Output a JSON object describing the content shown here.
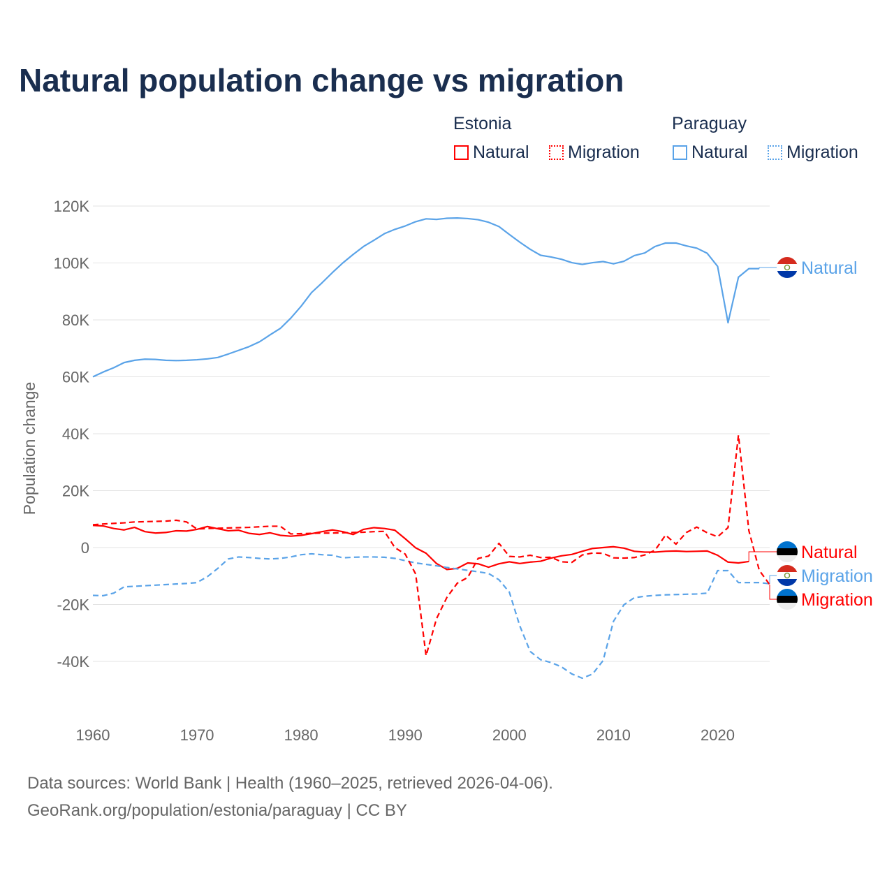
{
  "chart_data": {
    "type": "line",
    "title": "Natural population change vs migration",
    "ylabel": "Population change",
    "xlabel": "",
    "xlim": [
      1960,
      2025
    ],
    "ylim": [
      -50000,
      120000
    ],
    "x_ticks": [
      1960,
      1970,
      1980,
      1990,
      2000,
      2010,
      2020
    ],
    "x_tick_labels": [
      "1960",
      "1970",
      "1980",
      "1990",
      "2000",
      "2010",
      "2020"
    ],
    "y_ticks": [
      -40000,
      -20000,
      0,
      20000,
      40000,
      60000,
      80000,
      100000,
      120000
    ],
    "y_tick_labels": [
      "-40K",
      "-20K",
      "0",
      "20K",
      "40K",
      "60K",
      "80K",
      "100K",
      "120K"
    ],
    "grid": true,
    "legend": {
      "placement": "top-right",
      "groups": [
        {
          "name": "Estonia",
          "items": [
            "Natural",
            "Migration"
          ]
        },
        {
          "name": "Paraguay",
          "items": [
            "Natural",
            "Migration"
          ]
        }
      ]
    },
    "series": [
      {
        "name": "Paraguay Natural",
        "country": "Paraguay",
        "label": "Natural",
        "color": "#5aa3e8",
        "dash": false,
        "start": 1960,
        "values": [
          60000,
          61700,
          63200,
          65000,
          65800,
          66200,
          66100,
          65800,
          65700,
          65800,
          66000,
          66300,
          66800,
          68000,
          69300,
          70600,
          72300,
          74700,
          77000,
          80600,
          84800,
          89600,
          93000,
          96600,
          100000,
          103000,
          105800,
          108000,
          110300,
          111800,
          113000,
          114500,
          115500,
          115300,
          115700,
          115800,
          115600,
          115200,
          114300,
          112800,
          110000,
          107300,
          104800,
          102700,
          102100,
          101300,
          100100,
          99500,
          100100,
          100500,
          99700,
          100600,
          102600,
          103500,
          105800,
          107000,
          107000,
          106000,
          105200,
          103400,
          98800,
          79000,
          95000,
          98000,
          98000
        ]
      },
      {
        "name": "Estonia Natural",
        "country": "Estonia",
        "label": "Natural",
        "color": "#ff0000",
        "dash": false,
        "start": 1960,
        "values": [
          7800,
          7600,
          6700,
          6200,
          7100,
          5600,
          5100,
          5300,
          5900,
          5800,
          6400,
          7400,
          6600,
          5900,
          6100,
          5000,
          4600,
          5200,
          4300,
          4000,
          4300,
          4900,
          5600,
          6200,
          5600,
          4600,
          6400,
          7000,
          6700,
          6100,
          3100,
          -100,
          -2000,
          -5600,
          -7700,
          -7300,
          -5400,
          -5700,
          -6900,
          -5700,
          -5000,
          -5600,
          -5100,
          -4800,
          -3700,
          -2900,
          -2400,
          -1300,
          -300,
          0,
          300,
          -200,
          -1300,
          -1600,
          -1600,
          -1300,
          -1200,
          -1400,
          -1300,
          -1200,
          -2700,
          -5100,
          -5400,
          -4900
        ]
      },
      {
        "name": "Paraguay Migration",
        "country": "Paraguay",
        "label": "Migration",
        "color": "#5aa3e8",
        "dash": true,
        "start": 1960,
        "values": [
          -16800,
          -16900,
          -16000,
          -13800,
          -13600,
          -13400,
          -13200,
          -13000,
          -12800,
          -12600,
          -12300,
          -10200,
          -7300,
          -4000,
          -3300,
          -3500,
          -3800,
          -4000,
          -3800,
          -3300,
          -2500,
          -2200,
          -2500,
          -2700,
          -3600,
          -3400,
          -3300,
          -3300,
          -3400,
          -3800,
          -4600,
          -5400,
          -5900,
          -6400,
          -7000,
          -7500,
          -8000,
          -8500,
          -9100,
          -11300,
          -15700,
          -27500,
          -36500,
          -39400,
          -40400,
          -41900,
          -44400,
          -45900,
          -44400,
          -39700,
          -25900,
          -20100,
          -17600,
          -17100,
          -16800,
          -16600,
          -16500,
          -16400,
          -16300,
          -16000,
          -8100,
          -8100,
          -12300,
          -12300,
          -12300,
          -12700
        ]
      },
      {
        "name": "Estonia Migration",
        "country": "Estonia",
        "label": "Migration",
        "color": "#ff0000",
        "dash": true,
        "start": 1960,
        "values": [
          8000,
          8300,
          8500,
          8700,
          9000,
          9100,
          9200,
          9300,
          9600,
          9000,
          6500,
          6700,
          6800,
          6900,
          7000,
          7100,
          7300,
          7500,
          7500,
          4800,
          4900,
          5000,
          5100,
          5100,
          5200,
          5300,
          5400,
          5600,
          5700,
          0,
          -2300,
          -9300,
          -38000,
          -25000,
          -17500,
          -12500,
          -10500,
          -3800,
          -3000,
          1500,
          -3100,
          -3300,
          -2700,
          -3500,
          -3400,
          -5000,
          -5200,
          -2600,
          -1900,
          -2000,
          -3600,
          -3700,
          -3500,
          -2600,
          -900,
          4400,
          1200,
          5300,
          7200,
          5200,
          3800,
          7000,
          39500,
          6000,
          -8000,
          -13000
        ]
      }
    ]
  },
  "source_line1": "Data sources: World Bank | Health (1960–2025, retrieved 2026-04-06).",
  "source_line2": "GeoRank.org/population/estonia/paraguay | CC BY"
}
